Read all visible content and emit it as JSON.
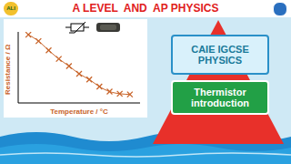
{
  "header": {
    "title": "A LEVEL  AND  AP PHYSICS",
    "badge": "ALI"
  },
  "chart_data": {
    "type": "line",
    "x": [
      1,
      2,
      3,
      4,
      5,
      6,
      7,
      8,
      9,
      10,
      11
    ],
    "values": [
      96,
      87,
      74,
      62,
      52,
      41,
      33,
      23,
      16,
      13,
      12
    ],
    "xlim": [
      0,
      12
    ],
    "ylim": [
      0,
      100
    ],
    "x_label": "Temperature / °C",
    "y_label": "Resistance / Ω",
    "color": "#c8642a",
    "marker": "x",
    "tick_labels": false,
    "grid": false
  },
  "boxes": [
    {
      "text": "CAIE IGCSE PHYSICS"
    },
    {
      "text": "Thermistor introduction"
    }
  ]
}
